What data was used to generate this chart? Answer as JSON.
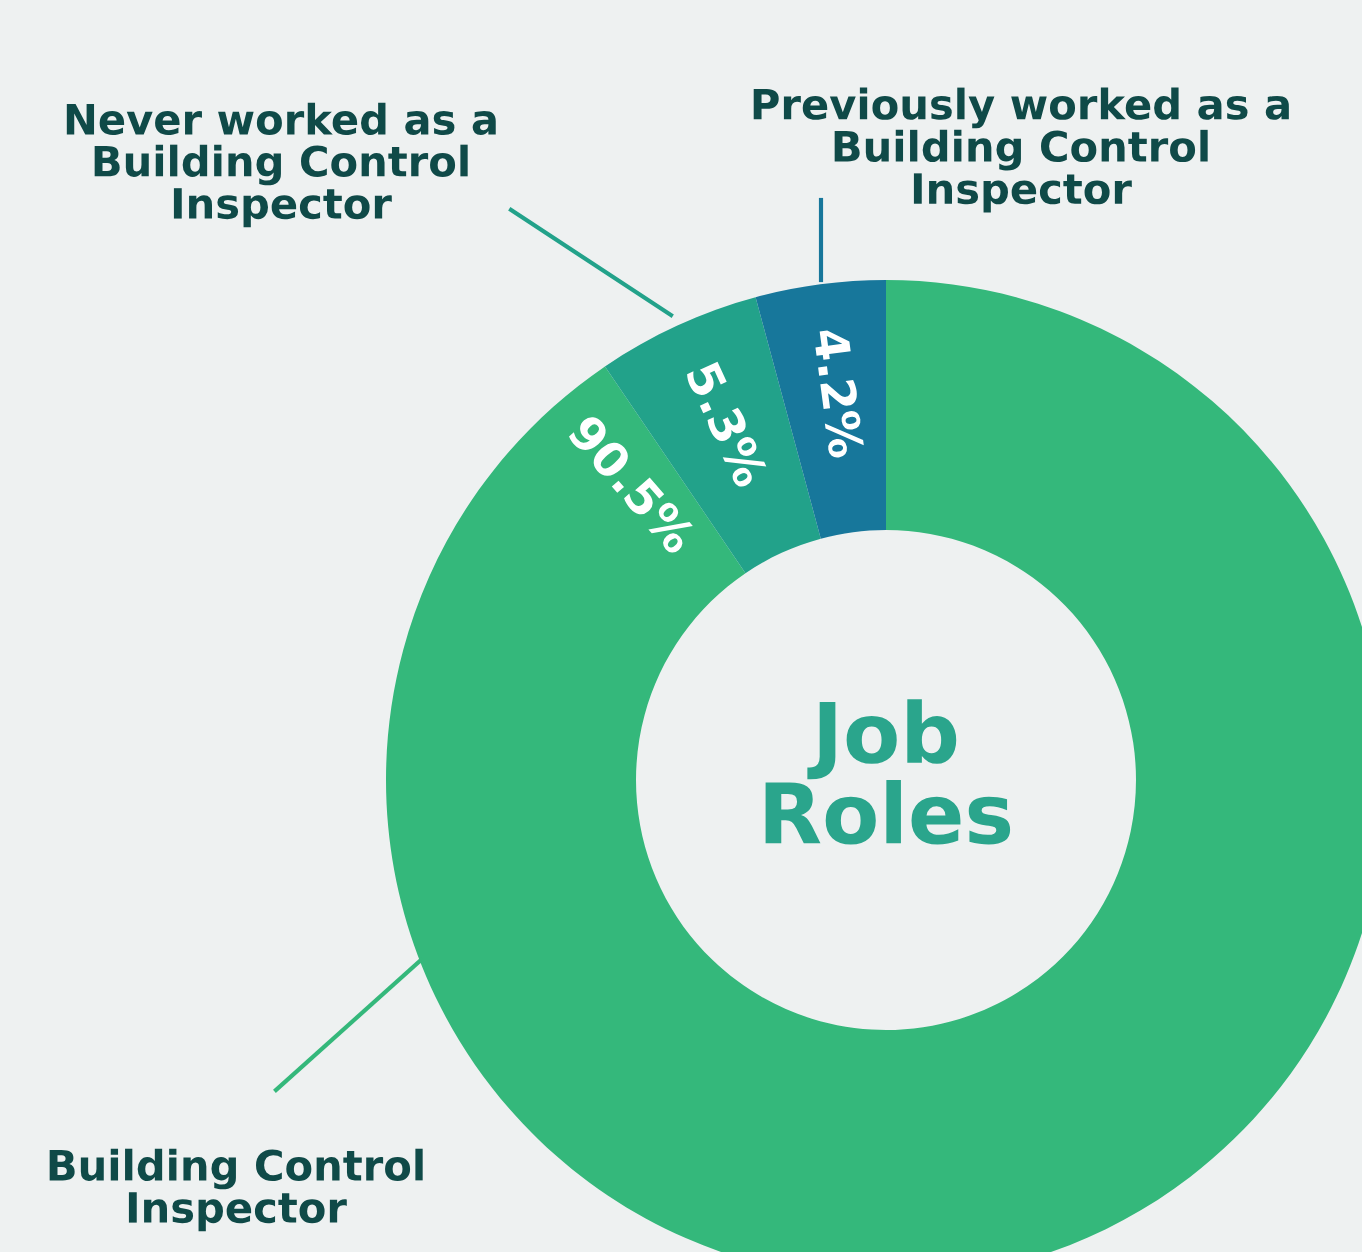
{
  "chart_data": {
    "type": "donut",
    "title": "Job Roles",
    "categories": [
      "Building Control Inspector",
      "Never worked as a Building Control Inspector",
      "Previously worked as a Building Control Inspector"
    ],
    "values": [
      90.5,
      5.3,
      4.2
    ],
    "colors": [
      "#34b87b",
      "#22a28a",
      "#17779b"
    ],
    "value_labels": [
      "90.5%",
      "5.3%",
      "4.2%"
    ],
    "legend": false
  }
}
